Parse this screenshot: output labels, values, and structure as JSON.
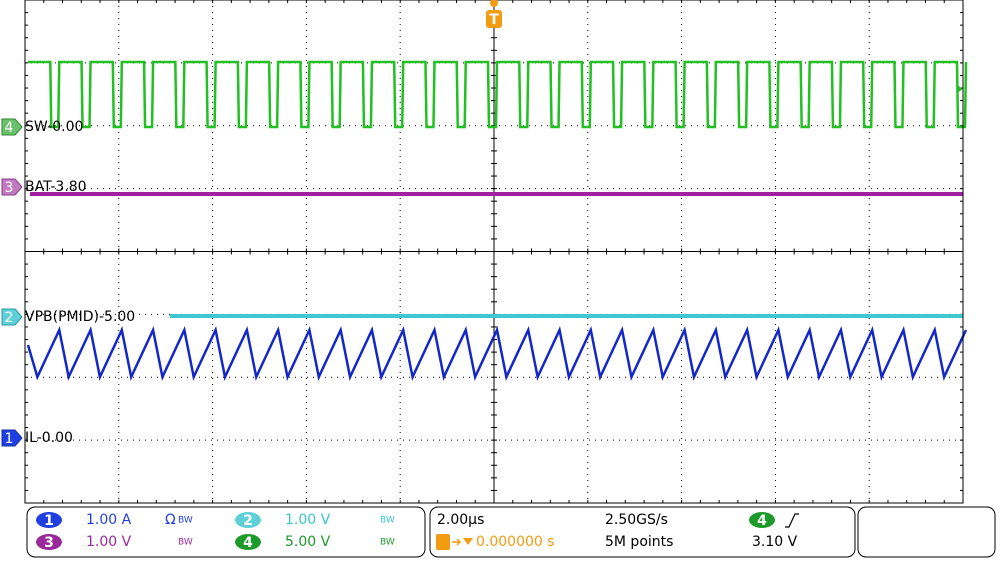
{
  "trigger_marker": "T",
  "channels": [
    {
      "number": "4",
      "label": "SW-0.00"
    },
    {
      "number": "3",
      "label": "BAT-3.80"
    },
    {
      "number": "2",
      "label": "VPB(PMID)-5.00"
    },
    {
      "number": "1",
      "label": "IL-0.00"
    }
  ],
  "bottom_panel": {
    "channel_settings": [
      {
        "number": "1",
        "scale": "1.00 A",
        "termination": "Ω",
        "bandwidth": "BW"
      },
      {
        "number": "2",
        "scale": "1.00 V",
        "bandwidth": "BW"
      },
      {
        "number": "3",
        "scale": "1.00 V",
        "bandwidth": "BW"
      },
      {
        "number": "4",
        "scale": "5.00 V",
        "bandwidth": "BW"
      }
    ],
    "timebase": "2.00µs",
    "sample_rate": "2.50GS/s",
    "record_length": "5M points",
    "trigger": {
      "source": "4",
      "level": "3.10 V",
      "position": "0.000000 s"
    }
  }
}
